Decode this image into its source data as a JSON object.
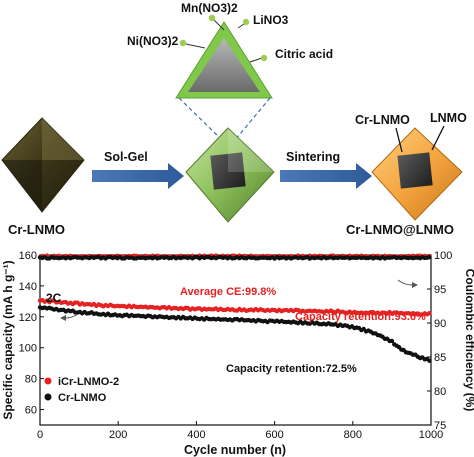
{
  "schematic": {
    "precursors": {
      "mn": "Mn(NO3)2",
      "ni": "Ni(NO3)2",
      "li": "LiNO3",
      "citric": "Citric acid"
    },
    "steps": {
      "solgel": "Sol-Gel",
      "sintering": "Sintering"
    },
    "labels": {
      "start": "Cr-LNMO",
      "product": "Cr-LNMO@LNMO",
      "core": "Cr-LNMO",
      "shell": "LNMO"
    }
  },
  "chart_data": {
    "type": "scatter",
    "xlabel": "Cycle number (n)",
    "ylabel": "Specific capacity (mA h g⁻¹)",
    "y2label": "Coulombic efficiency (%)",
    "xlim": [
      0,
      1000
    ],
    "ylim": [
      50,
      160
    ],
    "y2lim": [
      75,
      100
    ],
    "x_ticks": [
      0,
      200,
      400,
      600,
      800,
      1000
    ],
    "y_ticks": [
      60,
      80,
      100,
      120,
      140,
      160
    ],
    "y2_ticks": [
      75,
      80,
      85,
      90,
      95,
      100
    ],
    "legend_position": "bottom-left",
    "rate_label": "2C",
    "annotations": {
      "ce": "Average CE:99.8%",
      "ret_red": "Capacity retention:93.6%",
      "ret_black": "Capacity retention:72.5%"
    },
    "series": [
      {
        "name": "iCr-LNMO-2",
        "color": "#e52222",
        "axis": "left",
        "x": [
          0,
          50,
          100,
          150,
          200,
          250,
          300,
          350,
          400,
          450,
          500,
          550,
          600,
          650,
          700,
          750,
          800,
          850,
          900,
          950,
          1000
        ],
        "y": [
          130.5,
          129.5,
          128.5,
          127.5,
          127.0,
          126.5,
          126.0,
          125.5,
          125.0,
          125.0,
          124.5,
          124.5,
          124.0,
          124.0,
          123.5,
          123.5,
          123.0,
          122.5,
          122.5,
          122.0,
          122.0
        ]
      },
      {
        "name": "Cr-LNMO",
        "color": "#111111",
        "axis": "left",
        "x": [
          0,
          50,
          100,
          150,
          200,
          250,
          300,
          350,
          400,
          450,
          500,
          550,
          600,
          650,
          700,
          750,
          800,
          850,
          900,
          920,
          940,
          960,
          980,
          1000
        ],
        "y": [
          126.0,
          124.5,
          123.0,
          122.0,
          121.0,
          120.5,
          120.0,
          119.5,
          119.0,
          118.5,
          118.0,
          117.5,
          117.0,
          116.5,
          116.0,
          115.0,
          113.5,
          110.0,
          104.0,
          100.0,
          97.0,
          95.0,
          93.0,
          91.5
        ]
      },
      {
        "name": "",
        "color": "#e52222",
        "axis": "right",
        "x": [
          0,
          100,
          200,
          300,
          400,
          500,
          600,
          700,
          800,
          900,
          1000
        ],
        "y": [
          99.8,
          99.8,
          99.8,
          99.8,
          99.8,
          99.8,
          99.8,
          99.8,
          99.8,
          99.8,
          99.8
        ]
      },
      {
        "name": "",
        "color": "#111111",
        "axis": "right",
        "x": [
          0,
          100,
          200,
          300,
          400,
          500,
          600,
          700,
          800,
          900,
          1000
        ],
        "y": [
          99.6,
          99.6,
          99.6,
          99.6,
          99.6,
          99.6,
          99.6,
          99.6,
          99.6,
          99.6,
          99.6
        ]
      }
    ]
  }
}
